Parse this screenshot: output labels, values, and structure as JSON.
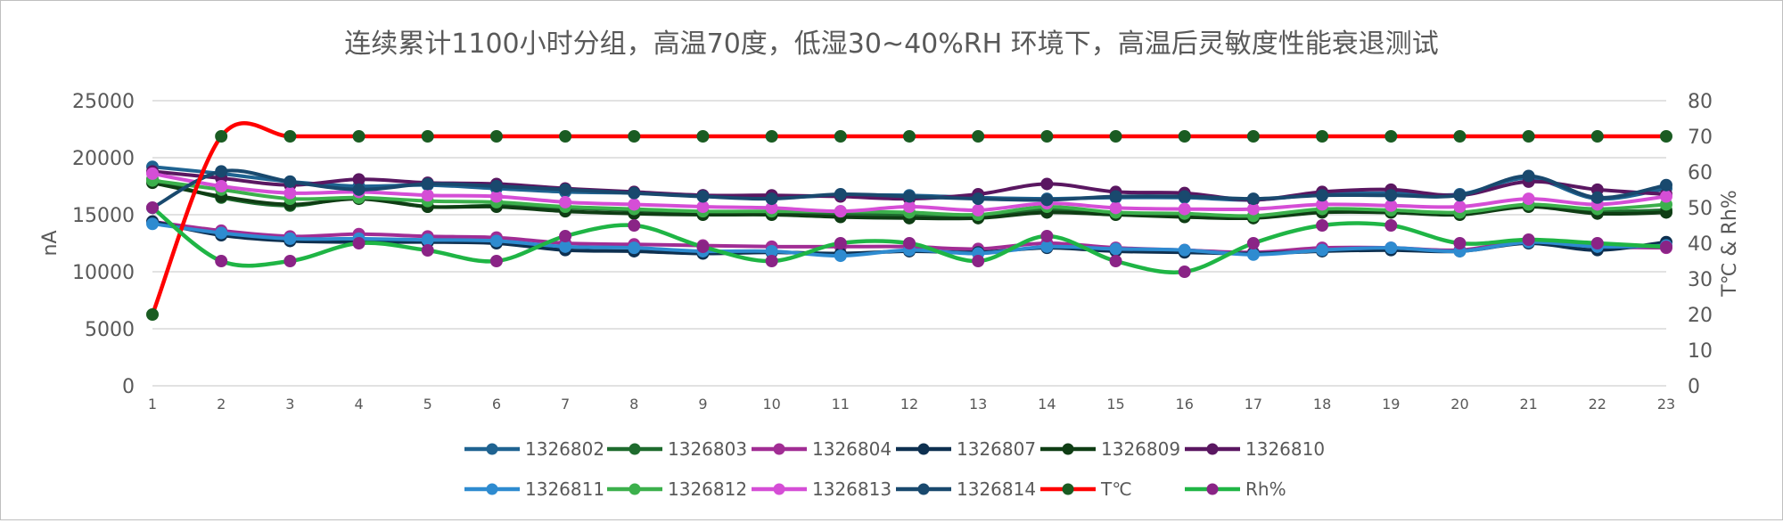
{
  "chart_data": {
    "type": "line",
    "title": "连续累计1100小时分组，高温70度，低湿30~40%RH 环境下，高温后灵敏度性能衰退测试",
    "ylabel": "nA",
    "y2label": "T℃ & Rh%",
    "ylim": [
      0,
      25000
    ],
    "y2lim": [
      0,
      80
    ],
    "yticks": [
      "0",
      "5000",
      "10000",
      "15000",
      "20000",
      "25000"
    ],
    "y2ticks": [
      "0",
      "10",
      "20",
      "30",
      "40",
      "50",
      "60",
      "70",
      "80"
    ],
    "categories": [
      "1",
      "2",
      "3",
      "4",
      "5",
      "6",
      "7",
      "8",
      "9",
      "10",
      "11",
      "12",
      "13",
      "14",
      "15",
      "16",
      "17",
      "18",
      "19",
      "20",
      "21",
      "22",
      "23"
    ],
    "grid": true,
    "legend_position": "bottom",
    "series": [
      {
        "name": "1326802",
        "axis": "left",
        "color": "#1f6391",
        "marker": "#1f6391",
        "values": [
          19200,
          18600,
          17900,
          17500,
          17600,
          17300,
          17000,
          16900,
          16700,
          16500,
          16700,
          16700,
          16500,
          16400,
          16500,
          16500,
          16300,
          16800,
          16900,
          16800,
          18200,
          16400,
          17300
        ]
      },
      {
        "name": "1326803",
        "axis": "left",
        "color": "#1e6b2e",
        "marker": "#1e6b2e",
        "values": [
          18100,
          16500,
          15800,
          16500,
          15700,
          15800,
          15600,
          15400,
          15200,
          15200,
          15100,
          14900,
          14800,
          15500,
          15100,
          14900,
          14800,
          15300,
          15200,
          15100,
          15800,
          15300,
          15400
        ]
      },
      {
        "name": "1326804",
        "axis": "left",
        "color": "#a12d94",
        "marker": "#a12d94",
        "values": [
          14400,
          13600,
          13100,
          13300,
          13100,
          13000,
          12500,
          12400,
          12300,
          12200,
          12200,
          12200,
          12000,
          12500,
          12100,
          11900,
          11700,
          12100,
          12100,
          11900,
          12700,
          12200,
          12100
        ]
      },
      {
        "name": "1326807",
        "axis": "left",
        "color": "#0e3050",
        "marker": "#0e3050",
        "values": [
          14400,
          13200,
          12700,
          12600,
          12600,
          12500,
          11900,
          11800,
          11600,
          11700,
          11600,
          11800,
          11700,
          12100,
          11800,
          11700,
          11600,
          11800,
          11900,
          11800,
          12500,
          11900,
          12600
        ]
      },
      {
        "name": "1326809",
        "axis": "left",
        "color": "#0f3d14",
        "marker": "#0f3d14",
        "values": [
          17800,
          16600,
          15900,
          16400,
          15700,
          15700,
          15300,
          15100,
          15000,
          15000,
          14800,
          14700,
          14700,
          15200,
          15000,
          14800,
          14700,
          15200,
          15200,
          15000,
          15700,
          15100,
          15200
        ]
      },
      {
        "name": "1326810",
        "axis": "left",
        "color": "#5a1761",
        "marker": "#5a1761",
        "values": [
          18800,
          18200,
          17600,
          18100,
          17800,
          17700,
          17300,
          17000,
          16700,
          16700,
          16600,
          16400,
          16800,
          17700,
          17000,
          16900,
          16300,
          17000,
          17200,
          16700,
          17900,
          17200,
          16800
        ]
      },
      {
        "name": "1326811",
        "axis": "left",
        "color": "#2e8bd0",
        "marker": "#2e8bd0",
        "values": [
          14200,
          13400,
          12900,
          12900,
          12800,
          12700,
          12200,
          12100,
          11800,
          11800,
          11400,
          11900,
          11600,
          12200,
          12000,
          11900,
          11500,
          11900,
          12100,
          11800,
          12600,
          12200,
          12300
        ]
      },
      {
        "name": "1326812",
        "axis": "left",
        "color": "#3cb04c",
        "marker": "#3cb04c",
        "values": [
          18000,
          17200,
          16400,
          16500,
          16200,
          16100,
          15700,
          15500,
          15300,
          15300,
          15300,
          15200,
          15000,
          15700,
          15200,
          15100,
          14900,
          15500,
          15400,
          15200,
          15900,
          15500,
          15900
        ]
      },
      {
        "name": "1326813",
        "axis": "left",
        "color": "#d54ed6",
        "marker": "#d54ed6",
        "values": [
          18600,
          17500,
          16900,
          17000,
          16700,
          16600,
          16100,
          15900,
          15700,
          15600,
          15300,
          15700,
          15400,
          16000,
          15600,
          15500,
          15500,
          15900,
          15800,
          15700,
          16400,
          15900,
          16600
        ]
      },
      {
        "name": "1326814",
        "axis": "left",
        "color": "#19496e",
        "marker": "#19496e",
        "values": [
          15600,
          18800,
          17900,
          17200,
          17700,
          17500,
          17200,
          16900,
          16600,
          16400,
          16800,
          16600,
          16400,
          16300,
          16600,
          16600,
          16400,
          16700,
          16700,
          16700,
          18400,
          16500,
          17600
        ]
      },
      {
        "name": "T℃",
        "axis": "right",
        "color": "#ff0000",
        "marker": "#1a5c22",
        "values": [
          20,
          70,
          70,
          70,
          70,
          70,
          70,
          70,
          70,
          70,
          70,
          70,
          70,
          70,
          70,
          70,
          70,
          70,
          70,
          70,
          70,
          70,
          70
        ]
      },
      {
        "name": "Rh%",
        "axis": "right",
        "color": "#1fb545",
        "marker": "#8a2486",
        "values": [
          50,
          35,
          35,
          40,
          38,
          35,
          42,
          45,
          39,
          35,
          40,
          40,
          35,
          42,
          35,
          32,
          40,
          45,
          45,
          40,
          41,
          40,
          39
        ]
      }
    ]
  }
}
